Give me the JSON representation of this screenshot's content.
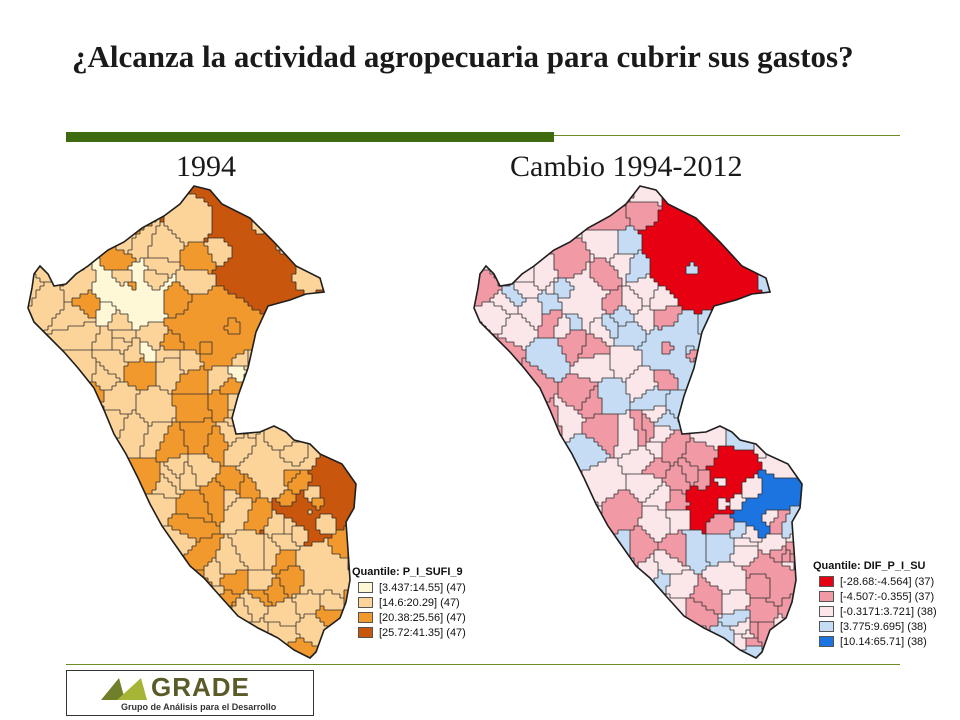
{
  "slide": {
    "title": "¿Alcanza la actividad agropecuaria para cubrir sus gastos?"
  },
  "maps": {
    "left": {
      "label": "1994",
      "legend_title": "Quantile: P_I_SUFI_9",
      "classes": [
        {
          "label": "[3.437:14.55] (47)",
          "color": "#fff8d6"
        },
        {
          "label": "[14.6:20.29] (47)",
          "color": "#fcd49a"
        },
        {
          "label": "[20.38:25.56] (47)",
          "color": "#f2992e"
        },
        {
          "label": "[25.72:41.35] (47)",
          "color": "#c8560c"
        }
      ]
    },
    "right": {
      "label": "Cambio 1994-2012",
      "legend_title": "Quantile: DIF_P_I_SU",
      "classes": [
        {
          "label": "[-28.68:-4.564] (37)",
          "color": "#e60012"
        },
        {
          "label": "[-4.507:-0.355] (37)",
          "color": "#f19aa6"
        },
        {
          "label": "[-0.3171:3.721] (38)",
          "color": "#fbe6ea"
        },
        {
          "label": "[3.775:9.695] (38)",
          "color": "#c6dcf4"
        },
        {
          "label": "[10.14:65.71] (38)",
          "color": "#1c74e0"
        }
      ]
    }
  },
  "logo": {
    "word": "GRADE",
    "subtitle": "Grupo de Análisis para el Desarrollo",
    "mark_colors": [
      "#6f7f2a",
      "#a7b536"
    ]
  }
}
